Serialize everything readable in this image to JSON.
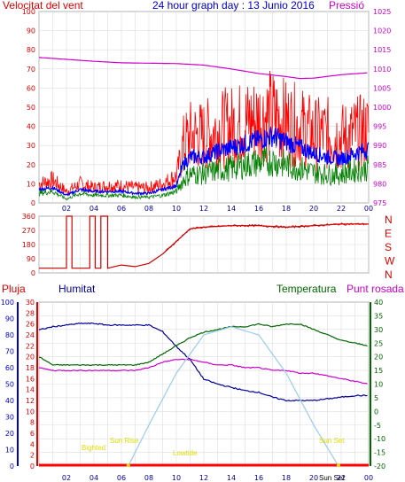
{
  "colors": {
    "wind": "#ff0000",
    "wind_avg": "#0000ff",
    "wind_green": "#008000",
    "pressure": "#cc00cc",
    "direction": "#cc0000",
    "humidity": "#000099",
    "temperature": "#006600",
    "dewpoint": "#cc00cc",
    "sun": "#99ccee",
    "annotation": "#dddd00",
    "rain": "#ff0000"
  },
  "chart_data": [
    {
      "type": "line",
      "title": "24 hour graph day : 13 Junio 2016",
      "left_label": "Velocitat del vent",
      "right_label": "Pressió",
      "x_ticks": [
        "02",
        "04",
        "06",
        "08",
        "10",
        "12",
        "14",
        "16",
        "18",
        "20",
        "22",
        "00"
      ],
      "y_left_ticks": [
        "0",
        "10",
        "20",
        "30",
        "40",
        "50",
        "60",
        "70",
        "80",
        "90",
        "100"
      ],
      "y_left_range": [
        0,
        100
      ],
      "y_right_ticks": [
        "975",
        "980",
        "985",
        "990",
        "995",
        "1000",
        "1005",
        "1010",
        "1015",
        "1020",
        "1025"
      ],
      "y_right_range": [
        975,
        1025
      ],
      "x_range_hours": [
        0,
        24
      ],
      "series": [
        {
          "key": "gust",
          "color_key": "wind",
          "x": [
            0,
            1,
            2,
            3,
            4,
            5,
            6,
            7,
            8,
            9,
            10,
            10.5,
            11,
            12,
            13,
            14,
            15,
            16,
            17,
            18,
            19,
            20,
            21,
            22,
            23,
            24
          ],
          "y": [
            10,
            12,
            6,
            10,
            8,
            9,
            9,
            8,
            8,
            10,
            14,
            30,
            35,
            35,
            38,
            40,
            42,
            44,
            46,
            42,
            40,
            36,
            36,
            34,
            36,
            38
          ]
        },
        {
          "key": "average",
          "color_key": "wind_avg",
          "x": [
            0,
            1,
            2,
            3,
            4,
            5,
            6,
            7,
            8,
            9,
            10,
            10.5,
            11,
            12,
            13,
            14,
            15,
            16,
            17,
            18,
            19,
            20,
            21,
            22,
            23,
            24
          ],
          "y": [
            7,
            8,
            4,
            7,
            6,
            6,
            6,
            5,
            5,
            7,
            9,
            20,
            24,
            24,
            27,
            29,
            31,
            33,
            35,
            32,
            29,
            26,
            24,
            23,
            26,
            28
          ]
        },
        {
          "key": "wind",
          "color_key": "wind_green",
          "x": [
            0,
            1,
            2,
            3,
            4,
            5,
            6,
            7,
            8,
            9,
            10,
            10.5,
            11,
            12,
            13,
            14,
            15,
            16,
            17,
            18,
            19,
            20,
            21,
            22,
            23,
            24
          ],
          "y": [
            5,
            6,
            2,
            5,
            4,
            4,
            4,
            3,
            3,
            4,
            6,
            12,
            15,
            15,
            17,
            18,
            20,
            21,
            22,
            20,
            18,
            16,
            15,
            15,
            17,
            18
          ]
        },
        {
          "key": "pressure",
          "color_key": "pressure",
          "axis": "right",
          "x": [
            0,
            2,
            4,
            6,
            8,
            10,
            12,
            14,
            16,
            18,
            19,
            20,
            22,
            24
          ],
          "y": [
            1013,
            1012.5,
            1012,
            1011.6,
            1011.5,
            1011.4,
            1011,
            1010,
            1008.8,
            1008,
            1007.5,
            1007.6,
            1008.5,
            1009
          ]
        }
      ]
    },
    {
      "type": "line",
      "y_left_ticks": [
        "0",
        "90",
        "180",
        "270",
        "360"
      ],
      "y_left_range": [
        0,
        360
      ],
      "y_right_ticks": [
        "N",
        "W",
        "S",
        "E",
        "N"
      ],
      "x_ticks": [
        "02",
        "04",
        "06",
        "08",
        "10",
        "12",
        "14",
        "16",
        "18",
        "20",
        "22",
        "00"
      ],
      "series": [
        {
          "key": "direction",
          "color_key": "direction",
          "x": [
            0,
            1.9,
            2,
            2.1,
            2.4,
            3.6,
            3.7,
            3.8,
            4.1,
            4.4,
            4.5,
            4.6,
            5,
            6,
            7,
            8,
            9,
            10,
            10.5,
            11,
            12,
            14,
            16,
            18,
            20,
            22,
            24
          ],
          "y": [
            30,
            30,
            360,
            360,
            30,
            30,
            360,
            360,
            30,
            30,
            360,
            360,
            30,
            50,
            40,
            60,
            120,
            200,
            240,
            280,
            290,
            300,
            300,
            290,
            300,
            310,
            310
          ]
        }
      ]
    },
    {
      "type": "line",
      "left_label_1": "Pluja",
      "left_label_2": "Humitat",
      "right_label_1": "Temperatura",
      "right_label_2": "Punt rosada",
      "x_ticks": [
        "02",
        "04",
        "06",
        "08",
        "10",
        "12",
        "14",
        "16",
        "18",
        "20",
        "22",
        "00"
      ],
      "y_humidity_ticks": [
        "0",
        "10",
        "20",
        "30",
        "40",
        "50",
        "60",
        "70",
        "80",
        "90",
        "100"
      ],
      "y_rain_ticks": [
        "0",
        "2",
        "4",
        "6",
        "8",
        "10",
        "12",
        "14",
        "16",
        "18",
        "20",
        "22",
        "24",
        "26",
        "28",
        "30"
      ],
      "y_temp_ticks": [
        "-20",
        "-15",
        "-10",
        "-5",
        "0",
        "5",
        "10",
        "15",
        "20",
        "25",
        "30",
        "35",
        "40"
      ],
      "y_temp_range": [
        -20,
        40
      ],
      "annotations": [
        "Sun Rise",
        "Sun Set",
        "Bighted",
        "Lowtide",
        "Sun Set"
      ],
      "series": [
        {
          "key": "humidity",
          "color_key": "humidity",
          "x": [
            0,
            1,
            2,
            3,
            4,
            5,
            6,
            7,
            8,
            9,
            10,
            11,
            12,
            13,
            14,
            15,
            16,
            17,
            18,
            19,
            20,
            21,
            22,
            23,
            24
          ],
          "y": [
            83,
            85,
            86,
            87,
            87,
            86,
            86,
            86,
            86,
            82,
            73,
            65,
            53,
            50,
            48,
            46,
            45,
            42,
            40,
            40,
            40,
            41,
            42,
            43,
            43
          ]
        },
        {
          "key": "temperature",
          "color_key": "temperature",
          "x": [
            0,
            1,
            2,
            3,
            4,
            5,
            6,
            7,
            8,
            9,
            10,
            11,
            12,
            13,
            14,
            15,
            16,
            17,
            18,
            19,
            20,
            21,
            22,
            23,
            24
          ],
          "y": [
            20,
            17,
            17,
            17,
            17,
            17,
            17,
            17,
            18,
            21,
            24,
            27,
            29,
            30,
            31,
            31,
            32,
            31,
            32,
            32,
            30,
            28,
            26,
            25,
            24
          ]
        },
        {
          "key": "dewpoint",
          "color_key": "dewpoint",
          "x": [
            0,
            1,
            2,
            3,
            4,
            5,
            6,
            7,
            8,
            9,
            10,
            11,
            12,
            13,
            14,
            15,
            16,
            17,
            18,
            19,
            20,
            21,
            22,
            23,
            24
          ],
          "y": [
            16,
            15,
            15,
            15,
            15,
            15,
            15,
            15,
            16,
            18,
            19,
            19,
            18,
            17,
            17,
            16,
            16,
            15,
            15,
            14,
            14,
            13,
            12,
            11,
            10
          ]
        },
        {
          "key": "sun",
          "color_key": "sun",
          "x": [
            6.5,
            8,
            10,
            12,
            14,
            16,
            18,
            20,
            21.8
          ],
          "y": [
            -20,
            -5,
            14,
            28,
            31,
            28,
            14,
            -5,
            -20
          ]
        },
        {
          "key": "rain",
          "color_key": "rain",
          "x": [
            0,
            24
          ],
          "y": [
            0,
            0
          ]
        }
      ]
    }
  ]
}
